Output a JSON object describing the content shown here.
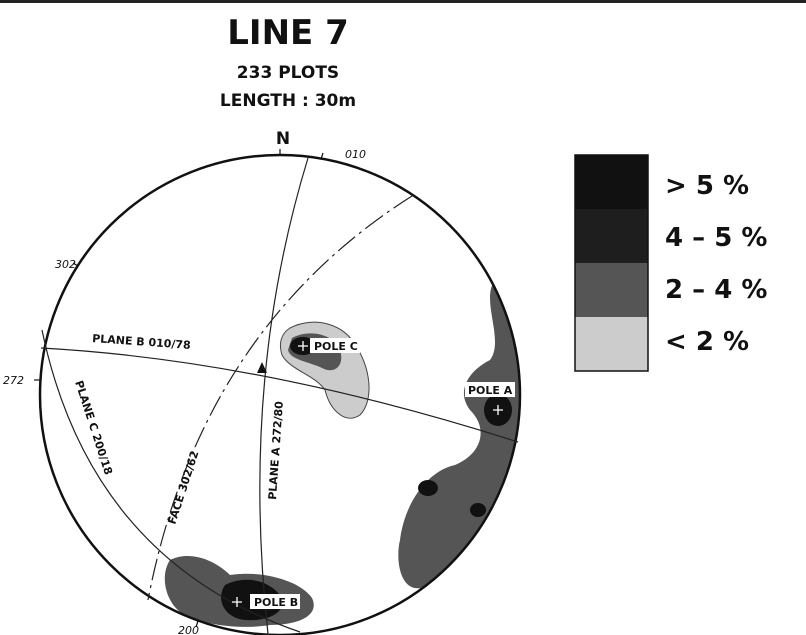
{
  "header": {
    "title": "LINE 7",
    "plots": "233 PLOTS",
    "length": "LENGTH : 30m"
  },
  "net": {
    "north": "N",
    "bearings": [
      "010",
      "302",
      "272",
      "200"
    ],
    "planes": [
      "PLANE B 010/78",
      "PLANE C 200/18",
      "FACE 302/62",
      "PLANE A 272/80"
    ],
    "poles": [
      "POLE C",
      "POLE A",
      "POLE B"
    ]
  },
  "legend": {
    "items": [
      "> 5 %",
      "4 – 5 %",
      "2 – 4 %",
      "< 2 %"
    ]
  }
}
